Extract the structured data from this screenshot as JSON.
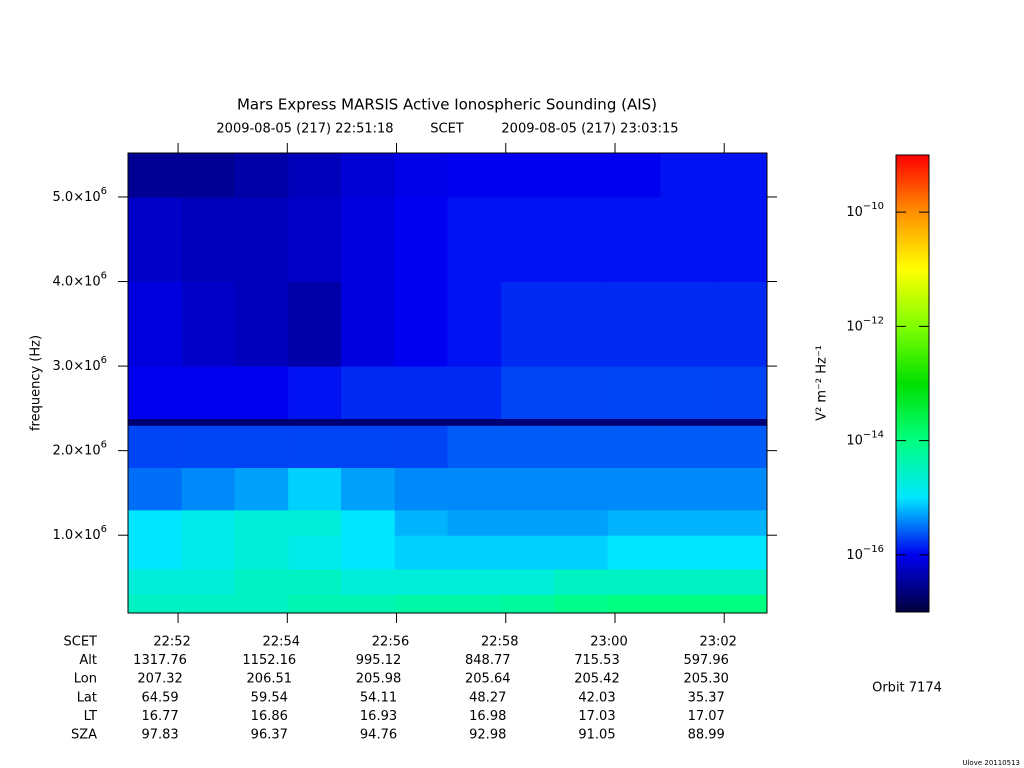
{
  "chart_data": {
    "type": "heatmap",
    "title": "Mars Express MARSIS Active Ionospheric Sounding (AIS)",
    "subtitle": {
      "start": "2009-08-05 (217) 22:51:18",
      "label": "SCET",
      "end": "2009-08-05 (217) 23:03:15"
    },
    "y_label": "frequency (Hz)",
    "xlim": [
      82265,
      82967
    ],
    "xticks": [
      {
        "value": 82320,
        "label": "22:52"
      },
      {
        "value": 82440,
        "label": "22:54"
      },
      {
        "value": 82560,
        "label": "22:56"
      },
      {
        "value": 82680,
        "label": "22:58"
      },
      {
        "value": 82800,
        "label": "23:00"
      },
      {
        "value": 82920,
        "label": "23:02"
      }
    ],
    "ylim": [
      80000,
      5520000
    ],
    "yticks": [
      {
        "value": 1000000,
        "label": "1.0×10",
        "exponent": "6"
      },
      {
        "value": 2000000,
        "label": "2.0×10",
        "exponent": "6"
      },
      {
        "value": 3000000,
        "label": "3.0×10",
        "exponent": "6"
      },
      {
        "value": 4000000,
        "label": "4.0×10",
        "exponent": "6"
      },
      {
        "value": 5000000,
        "label": "5.0×10",
        "exponent": "6"
      }
    ],
    "x_bins": [
      82265,
      82324,
      82382,
      82441,
      82499,
      82558,
      82616,
      82675,
      82733,
      82792,
      82850,
      82909,
      82967
    ],
    "y_bins": [
      80000,
      300000,
      600000,
      1000000,
      1300000,
      1800000,
      2300000,
      2380000,
      3000000,
      4000000,
      5000000,
      5520000
    ],
    "z": [
      [
        3e-15,
        3e-15,
        3e-15,
        4e-15,
        4e-15,
        5e-15,
        5e-15,
        6e-15,
        8e-15,
        1e-14,
        1e-14,
        1e-14
      ],
      [
        2e-15,
        2e-15,
        3e-15,
        3e-15,
        2e-15,
        2e-15,
        2e-15,
        2e-15,
        3e-15,
        3e-15,
        3e-15,
        3e-15
      ],
      [
        1e-15,
        1.5e-15,
        2e-15,
        1.5e-15,
        1e-15,
        8e-16,
        8e-16,
        8e-16,
        8e-16,
        1e-15,
        1e-15,
        1e-15
      ],
      [
        1e-15,
        1.5e-15,
        2e-15,
        2e-15,
        1e-15,
        6e-16,
        5e-16,
        5e-16,
        5e-16,
        6e-16,
        6e-16,
        6e-16
      ],
      [
        3e-16,
        4e-16,
        5e-16,
        8e-16,
        5e-16,
        4e-16,
        4e-16,
        4e-16,
        4e-16,
        4e-16,
        4e-16,
        4e-16
      ],
      [
        2e-16,
        2e-16,
        2e-16,
        2e-16,
        2e-16,
        2e-16,
        2.5e-16,
        2.5e-16,
        2.5e-16,
        2.5e-16,
        2.5e-16,
        2.5e-16
      ],
      [
        2e-17,
        2e-17,
        2e-17,
        2e-17,
        2e-17,
        2e-17,
        2e-17,
        2e-17,
        2e-17,
        2e-17,
        2e-17,
        2e-17
      ],
      [
        1e-16,
        1e-16,
        1e-16,
        1.2e-16,
        1.5e-16,
        1.5e-16,
        1.5e-16,
        2e-16,
        2e-16,
        2e-16,
        2e-16,
        2e-16
      ],
      [
        8e-17,
        6e-17,
        5e-17,
        4e-17,
        8e-17,
        1e-16,
        1.2e-16,
        1.5e-16,
        1.5e-16,
        1.5e-16,
        1.5e-16,
        1.5e-16
      ],
      [
        6e-17,
        5e-17,
        5e-17,
        6e-17,
        8e-17,
        1e-16,
        1.2e-16,
        1.2e-16,
        1.2e-16,
        1.2e-16,
        1.2e-16,
        1.2e-16
      ],
      [
        3e-17,
        3e-17,
        4e-17,
        5e-17,
        7e-17,
        9e-17,
        1e-16,
        1e-16,
        1e-16,
        1e-16,
        1.2e-16,
        1.2e-16
      ]
    ],
    "colorbar": {
      "label": "V² m⁻² Hz⁻¹",
      "log": true,
      "lim": [
        1e-17,
        1e-09
      ],
      "ticks": [
        {
          "value": 1e-10,
          "label": "10",
          "exponent": "−10"
        },
        {
          "value": 1e-12,
          "label": "10",
          "exponent": "−12"
        },
        {
          "value": 1e-14,
          "label": "10",
          "exponent": "−14"
        },
        {
          "value": 1e-16,
          "label": "10",
          "exponent": "−16"
        }
      ],
      "colormap": [
        "#00003c",
        "#0000f0",
        "#00e6ff",
        "#00ff80",
        "#00e000",
        "#80ff00",
        "#ffff00",
        "#ff9000",
        "#ff0000"
      ]
    }
  },
  "ephemeris": {
    "time_label": "SCET",
    "rows": [
      {
        "label": "Alt",
        "values": [
          "1317.76",
          "1152.16",
          "995.12",
          "848.77",
          "715.53",
          "597.96"
        ]
      },
      {
        "label": "Lon",
        "values": [
          "207.32",
          "206.51",
          "205.98",
          "205.64",
          "205.42",
          "205.30"
        ]
      },
      {
        "label": "Lat",
        "values": [
          "64.59",
          "59.54",
          "54.11",
          "48.27",
          "42.03",
          "35.37"
        ]
      },
      {
        "label": "LT",
        "values": [
          "16.77",
          "16.86",
          "16.93",
          "16.98",
          "17.03",
          "17.07"
        ]
      },
      {
        "label": "SZA",
        "values": [
          "97.83",
          "96.37",
          "94.76",
          "92.98",
          "91.05",
          "88.99"
        ]
      }
    ]
  },
  "orbit": "Orbit 7174",
  "footer": "Ulove 20110513"
}
